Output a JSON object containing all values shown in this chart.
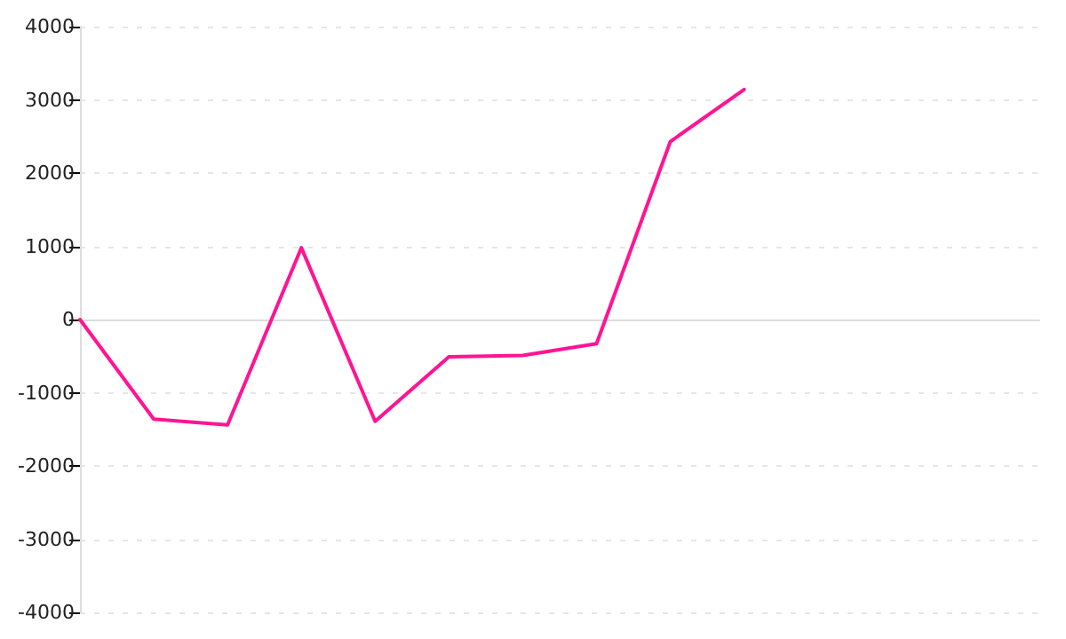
{
  "chart_data": {
    "type": "line",
    "categories": [
      null,
      null,
      null,
      null,
      null,
      null,
      null,
      null,
      null,
      null,
      null,
      null,
      null,
      null
    ],
    "series": [
      {
        "color": "#ff1493",
        "values": [
          0,
          -1360,
          -1440,
          980,
          -1390,
          -510,
          -490,
          -330,
          2430,
          3140,
          null,
          null,
          null,
          null
        ]
      }
    ],
    "ylim": [
      -4000,
      4000
    ],
    "yticks": [
      -4000,
      -3000,
      -2000,
      -1000,
      0,
      1000,
      2000,
      3000,
      4000
    ],
    "tick_labels": "y",
    "grid": "y",
    "marker": "none",
    "line_style": "solid"
  }
}
